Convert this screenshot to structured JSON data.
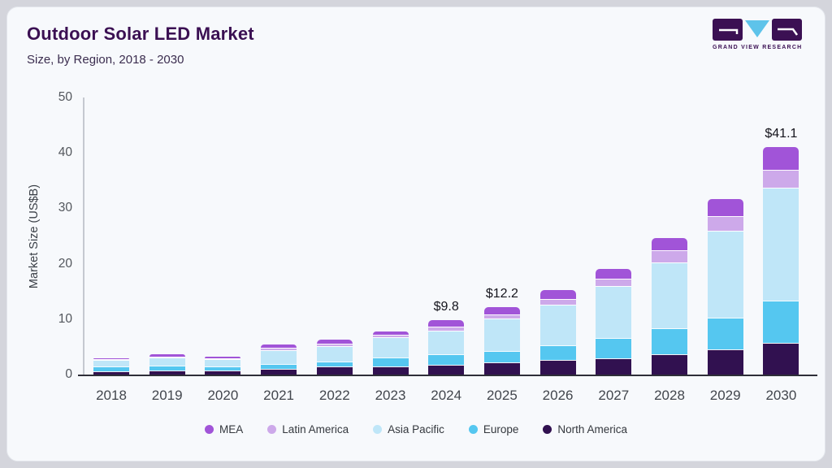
{
  "header": {
    "title": "Outdoor Solar LED Market",
    "subtitle": "Size, by Region, 2018 - 2030"
  },
  "logo": {
    "text": "GRAND VIEW RESEARCH"
  },
  "colors": {
    "accent_dark_purple": "#3b1053",
    "logo_triangle": "#5ec3ea",
    "card_bg": "#f7f9fc",
    "page_bg": "#d4d5dc"
  },
  "chart_data": {
    "type": "bar",
    "subtype": "stacked-vertical",
    "title": "Outdoor Solar LED Market",
    "xlabel": "",
    "ylabel": "Market Size (US$B)",
    "ylim": [
      0,
      50
    ],
    "yticks": [
      0,
      10,
      20,
      30,
      40,
      50
    ],
    "grid": false,
    "legend_position": "bottom",
    "categories": [
      "2018",
      "2019",
      "2020",
      "2021",
      "2022",
      "2023",
      "2024",
      "2025",
      "2026",
      "2027",
      "2028",
      "2029",
      "2030"
    ],
    "series": [
      {
        "name": "North America",
        "color": "#311150",
        "values": [
          0.6,
          0.7,
          0.8,
          1.0,
          1.4,
          1.5,
          1.7,
          2.2,
          2.6,
          2.9,
          3.7,
          4.5,
          5.7
        ]
      },
      {
        "name": "Europe",
        "color": "#55c7f0",
        "values": [
          0.9,
          0.9,
          0.6,
          0.9,
          1.0,
          1.6,
          2.0,
          2.1,
          2.7,
          3.7,
          4.6,
          5.8,
          7.6
        ]
      },
      {
        "name": "Asia Pacific",
        "color": "#bfe6f8",
        "values": [
          1.2,
          1.5,
          1.4,
          2.5,
          2.7,
          3.6,
          4.2,
          5.8,
          7.3,
          9.4,
          12.0,
          15.6,
          20.4
        ]
      },
      {
        "name": "Latin America",
        "color": "#cda9ea",
        "values": [
          0.1,
          0.2,
          0.2,
          0.4,
          0.5,
          0.5,
          0.8,
          0.7,
          1.0,
          1.3,
          2.2,
          2.7,
          3.3
        ]
      },
      {
        "name": "MEA",
        "color": "#a154d8",
        "values": [
          0.1,
          0.3,
          0.3,
          0.7,
          0.7,
          0.6,
          1.1,
          1.4,
          1.7,
          1.8,
          2.2,
          3.1,
          4.1
        ]
      }
    ],
    "totals": [
      2.9,
      3.6,
      3.3,
      5.5,
      6.3,
      7.8,
      9.8,
      12.2,
      15.3,
      19.1,
      24.7,
      31.7,
      41.1
    ],
    "value_labels": {
      "2024": "$9.8",
      "2025": "$12.2",
      "2030": "$41.1"
    }
  },
  "legend": [
    {
      "label": "MEA",
      "color": "#a154d8"
    },
    {
      "label": "Latin America",
      "color": "#cda9ea"
    },
    {
      "label": "Asia Pacific",
      "color": "#bfe6f8"
    },
    {
      "label": "Europe",
      "color": "#55c7f0"
    },
    {
      "label": "North America",
      "color": "#311150"
    }
  ]
}
